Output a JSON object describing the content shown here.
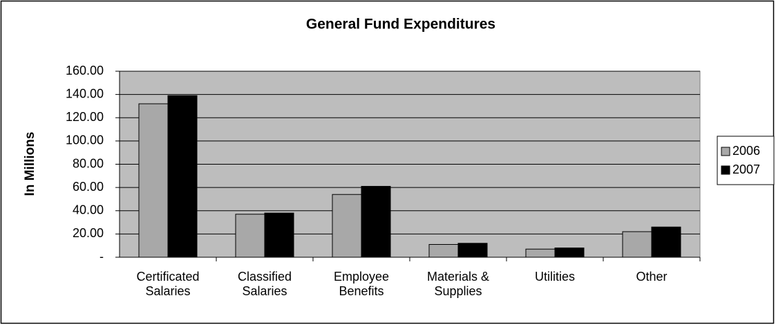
{
  "chart_data": {
    "type": "bar",
    "title": "General Fund Expenditures",
    "y_label": "In Millions",
    "categories": [
      "Certificated Salaries",
      "Classified Salaries",
      "Employee Benefits",
      "Materials & Supplies",
      "Utilities",
      "Other"
    ],
    "series": [
      {
        "name": "2006",
        "color": "#a8a8a8",
        "values": [
          132,
          37,
          54,
          11,
          7,
          22
        ]
      },
      {
        "name": "2007",
        "color": "#000000",
        "values": [
          139,
          38,
          61,
          12,
          8,
          26
        ]
      }
    ],
    "ylim": [
      0,
      160
    ],
    "yticks": [
      {
        "value": 0,
        "label": "-"
      },
      {
        "value": 20,
        "label": "20.00"
      },
      {
        "value": 40,
        "label": "40.00"
      },
      {
        "value": 60,
        "label": "60.00"
      },
      {
        "value": 80,
        "label": "80.00"
      },
      {
        "value": 100,
        "label": "100.00"
      },
      {
        "value": 120,
        "label": "120.00"
      },
      {
        "value": 140,
        "label": "140.00"
      },
      {
        "value": 160,
        "label": "160.00"
      }
    ],
    "grid": true,
    "legend": "right"
  }
}
